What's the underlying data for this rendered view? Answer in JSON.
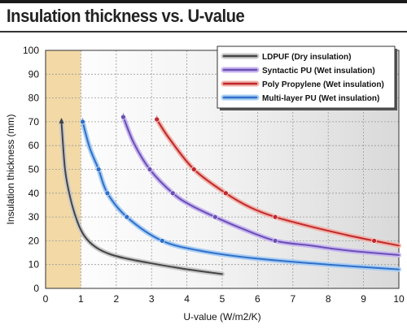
{
  "title": "Insulation thickness vs. U-value",
  "chart_data": {
    "type": "line",
    "title": "Insulation thickness vs. U-value",
    "xlabel": "U-value (W/m2/K)",
    "ylabel": "Insulation thickness (mm)",
    "xlim": [
      0,
      10
    ],
    "ylim": [
      0,
      100
    ],
    "x_ticks": [
      0,
      1,
      2,
      3,
      4,
      5,
      6,
      7,
      8,
      9,
      10
    ],
    "y_ticks": [
      0,
      10,
      20,
      30,
      40,
      50,
      60,
      70,
      80,
      90,
      100
    ],
    "grid": true,
    "legend_position": "top-right",
    "highlight_band": {
      "x_from": 0,
      "x_to": 1,
      "color": "#f2d9a6"
    },
    "series": [
      {
        "name": "LDPUF (Dry insulation)",
        "color": "#444444",
        "glow": "#c9c9c9",
        "markers": [],
        "points": [
          [
            0.45,
            70
          ],
          [
            0.55,
            50
          ],
          [
            0.7,
            38
          ],
          [
            0.9,
            28
          ],
          [
            1.1,
            22
          ],
          [
            1.4,
            17.5
          ],
          [
            1.8,
            14.5
          ],
          [
            2.3,
            12.5
          ],
          [
            3.0,
            10.5
          ],
          [
            3.8,
            8.5
          ],
          [
            4.5,
            7
          ],
          [
            5.0,
            6
          ]
        ]
      },
      {
        "name": "Syntactic PU (Wet insulation)",
        "color": "#6a4fb5",
        "glow": "#c8b6f0",
        "markers": [
          [
            2.2,
            72
          ],
          [
            2.95,
            50
          ],
          [
            3.6,
            40
          ],
          [
            4.8,
            30
          ],
          [
            6.5,
            20
          ]
        ],
        "points": [
          [
            2.2,
            72
          ],
          [
            2.5,
            61
          ],
          [
            2.95,
            50
          ],
          [
            3.6,
            40
          ],
          [
            4.1,
            35
          ],
          [
            4.8,
            30
          ],
          [
            5.5,
            25.5
          ],
          [
            6.5,
            20
          ],
          [
            7.5,
            18
          ],
          [
            8.5,
            16
          ],
          [
            10,
            14
          ]
        ]
      },
      {
        "name": "Poly Propylene (Wet insulation)",
        "color": "#c0282d",
        "glow": "#f0b2a8",
        "markers": [
          [
            3.15,
            71
          ],
          [
            4.2,
            50
          ],
          [
            5.1,
            40
          ],
          [
            6.5,
            30
          ],
          [
            9.3,
            20
          ]
        ],
        "points": [
          [
            3.15,
            71
          ],
          [
            3.5,
            63
          ],
          [
            4.2,
            50
          ],
          [
            5.1,
            40
          ],
          [
            5.8,
            34
          ],
          [
            6.5,
            30
          ],
          [
            7.5,
            26
          ],
          [
            8.5,
            22.5
          ],
          [
            9.3,
            20
          ],
          [
            10,
            18
          ]
        ]
      },
      {
        "name": "Multi-layer PU (Wet insulation)",
        "color": "#2f6fc9",
        "glow": "#a9cdf3",
        "markers": [
          [
            1.05,
            70
          ],
          [
            1.5,
            50
          ],
          [
            1.75,
            40
          ],
          [
            2.3,
            30
          ],
          [
            3.3,
            20
          ]
        ],
        "points": [
          [
            1.05,
            70
          ],
          [
            1.25,
            59
          ],
          [
            1.5,
            50
          ],
          [
            1.75,
            40
          ],
          [
            2.3,
            30
          ],
          [
            3.3,
            20
          ],
          [
            4.5,
            15.5
          ],
          [
            6,
            12.5
          ],
          [
            8,
            10
          ],
          [
            10,
            8
          ]
        ]
      }
    ]
  }
}
